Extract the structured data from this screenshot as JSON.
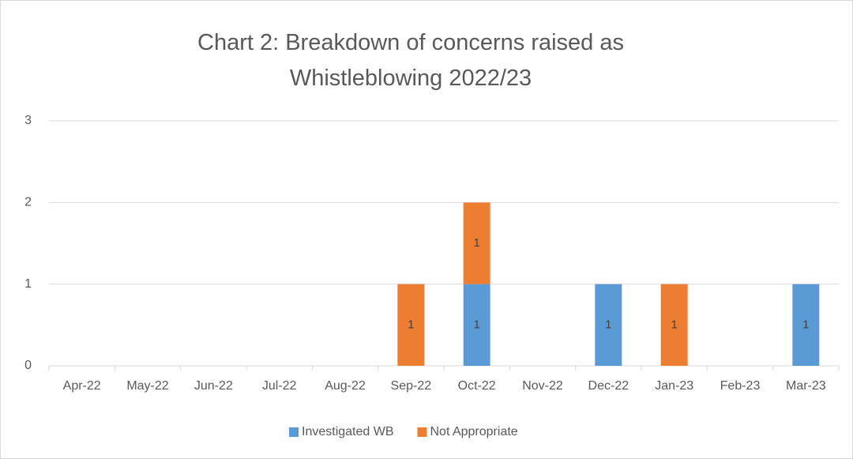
{
  "chart_data": {
    "type": "stacked_bar",
    "title": "Chart 2: Breakdown of concerns raised as Whistleblowing 2022/23",
    "categories": [
      "Apr-22",
      "May-22",
      "Jun-22",
      "Jul-22",
      "Aug-22",
      "Sep-22",
      "Oct-22",
      "Nov-22",
      "Dec-22",
      "Jan-23",
      "Feb-23",
      "Mar-23"
    ],
    "series": [
      {
        "name": "Investigated WB",
        "color": "#5b9bd5",
        "values": [
          null,
          null,
          null,
          null,
          null,
          null,
          1,
          null,
          1,
          null,
          null,
          1
        ]
      },
      {
        "name": "Not Appropriate",
        "color": "#ed7d31",
        "values": [
          null,
          null,
          null,
          null,
          null,
          1,
          1,
          null,
          null,
          1,
          null,
          null
        ]
      }
    ],
    "ylim": [
      0,
      3
    ],
    "yticks": [
      0,
      1,
      2,
      3
    ],
    "grid": true,
    "legend": "bottom"
  }
}
